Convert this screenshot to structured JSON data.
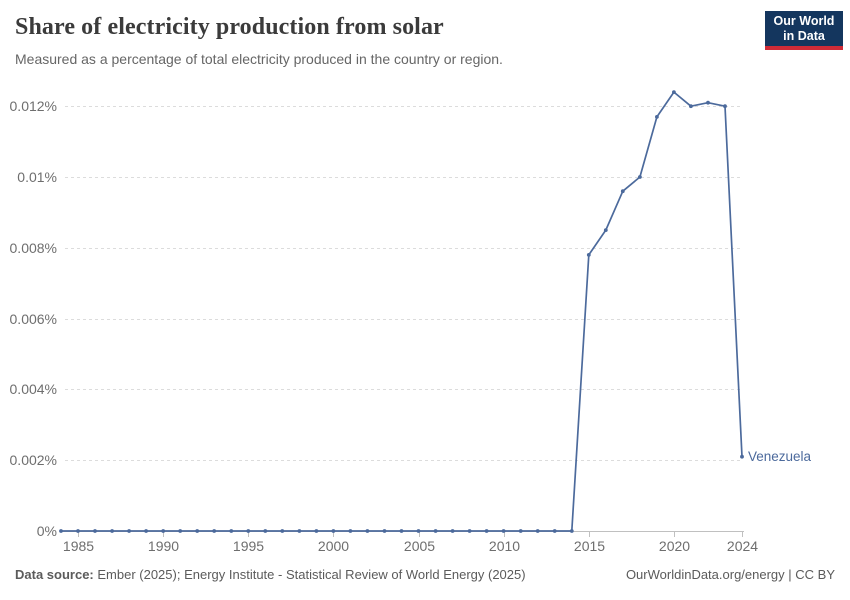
{
  "header": {
    "title": "Share of electricity production from solar",
    "subtitle": "Measured as a percentage of total electricity produced in the country or region.",
    "logo": {
      "line1": "Our World",
      "line2": "in Data",
      "bg_color": "#14365e",
      "accent_color": "#cf2b37"
    }
  },
  "footer": {
    "source_label": "Data source:",
    "source_text": " Ember (2025); Energy Institute - Statistical Review of World Energy (2025)",
    "right_text": "OurWorldinData.org/energy | CC BY"
  },
  "chart_data": {
    "type": "line",
    "title": "Share of electricity production from solar",
    "xlabel": "",
    "ylabel": "",
    "grid": "horizontal-dashed",
    "legend_position": "end-of-line-label",
    "end_label": "Venezuela",
    "line_color": "#4C6A9C",
    "grid_color": "#dcdcdc",
    "axis_color": "#c0c0c0",
    "tick_label_color": "#6e6e6e",
    "x_range": [
      1984,
      2024
    ],
    "y_range": [
      0,
      0.0126
    ],
    "y_ticks": [
      {
        "v": 0,
        "label": "0%"
      },
      {
        "v": 0.002,
        "label": "0.002%"
      },
      {
        "v": 0.004,
        "label": "0.004%"
      },
      {
        "v": 0.006,
        "label": "0.006%"
      },
      {
        "v": 0.008,
        "label": "0.008%"
      },
      {
        "v": 0.01,
        "label": "0.01%"
      },
      {
        "v": 0.012,
        "label": "0.012%"
      }
    ],
    "x_ticks": [
      {
        "v": 1985,
        "label": "1985"
      },
      {
        "v": 1990,
        "label": "1990"
      },
      {
        "v": 1995,
        "label": "1995"
      },
      {
        "v": 2000,
        "label": "2000"
      },
      {
        "v": 2005,
        "label": "2005"
      },
      {
        "v": 2010,
        "label": "2010"
      },
      {
        "v": 2015,
        "label": "2015"
      },
      {
        "v": 2020,
        "label": "2020"
      },
      {
        "v": 2024,
        "label": "2024"
      }
    ],
    "series": [
      {
        "name": "Venezuela",
        "color": "#4C6A9C",
        "points": [
          [
            1984,
            0
          ],
          [
            1985,
            0
          ],
          [
            1986,
            0
          ],
          [
            1987,
            0
          ],
          [
            1988,
            0
          ],
          [
            1989,
            0
          ],
          [
            1990,
            0
          ],
          [
            1991,
            0
          ],
          [
            1992,
            0
          ],
          [
            1993,
            0
          ],
          [
            1994,
            0
          ],
          [
            1995,
            0
          ],
          [
            1996,
            0
          ],
          [
            1997,
            0
          ],
          [
            1998,
            0
          ],
          [
            1999,
            0
          ],
          [
            2000,
            0
          ],
          [
            2001,
            0
          ],
          [
            2002,
            0
          ],
          [
            2003,
            0
          ],
          [
            2004,
            0
          ],
          [
            2005,
            0
          ],
          [
            2006,
            0
          ],
          [
            2007,
            0
          ],
          [
            2008,
            0
          ],
          [
            2009,
            0
          ],
          [
            2010,
            0
          ],
          [
            2011,
            0
          ],
          [
            2012,
            0
          ],
          [
            2013,
            0
          ],
          [
            2014,
            0
          ],
          [
            2015,
            0.0078
          ],
          [
            2016,
            0.0085
          ],
          [
            2017,
            0.0096
          ],
          [
            2018,
            0.01
          ],
          [
            2019,
            0.0117
          ],
          [
            2020,
            0.0124
          ],
          [
            2021,
            0.012
          ],
          [
            2022,
            0.0121
          ],
          [
            2023,
            0.012
          ],
          [
            2024,
            0.0021
          ]
        ]
      }
    ]
  }
}
